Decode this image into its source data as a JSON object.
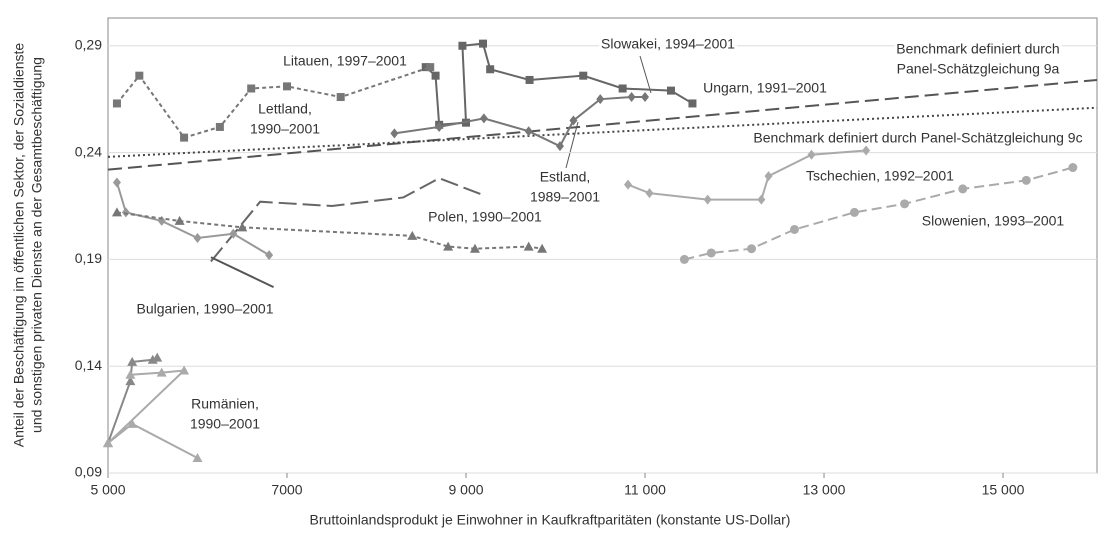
{
  "chart_data": {
    "type": "line",
    "xlabel": "Bruttoinlandsprodukt je Einwohner in Kaufkraftparitäten (konstante US-Dollar)",
    "ylabel": [
      "Anteil der Beschäftigung im öffentlichen Sektor, der Sozialdienste",
      "und sonstigen privaten Dienste an der Gesamtbeschäftigung"
    ],
    "xlim": [
      5000,
      16050
    ],
    "ylim": [
      0.09,
      0.303
    ],
    "xticks": [
      {
        "value": 5000,
        "label": "5 000"
      },
      7000,
      {
        "value": 9000,
        "label": "9 000"
      },
      {
        "value": 11000,
        "label": "11 000"
      },
      {
        "value": 13000,
        "label": "13 000"
      },
      {
        "value": 15000,
        "label": "15 000"
      }
    ],
    "yticks": [
      {
        "value": 0.09,
        "label": "0,09"
      },
      {
        "value": 0.14,
        "label": "0,14"
      },
      {
        "value": 0.19,
        "label": "0,19"
      },
      {
        "value": 0.24,
        "label": "0,24"
      },
      {
        "value": 0.29,
        "label": "0,29"
      }
    ],
    "grid": true,
    "series": [
      {
        "x": [
          5000,
          16050
        ],
        "values": [
          0.232,
          0.274
        ],
        "color": "#555555",
        "dash": "14 6",
        "marker": "none"
      },
      {
        "x": [
          5000,
          16050
        ],
        "values": [
          0.238,
          0.261
        ],
        "color": "#444444",
        "dash": "2 3",
        "marker": "none"
      },
      {
        "x": [
          8550,
          8660,
          8700,
          9000,
          8960,
          9190,
          9270,
          9710,
          10310,
          10750,
          11290,
          11530
        ],
        "values": [
          0.28,
          0.276,
          0.253,
          0.254,
          0.29,
          0.291,
          0.279,
          0.274,
          0.276,
          0.27,
          0.269,
          0.263
        ],
        "color": "#666666",
        "dash": "none",
        "marker": "square"
      },
      {
        "x": [
          8200,
          8700,
          9200,
          9700,
          10050,
          10200,
          10500,
          10850,
          11000
        ],
        "values": [
          0.249,
          0.252,
          0.256,
          0.25,
          0.243,
          0.255,
          0.265,
          0.266,
          0.266
        ],
        "color": "#777777",
        "dash": "none",
        "marker": "diamond"
      },
      {
        "x": [
          5100,
          5350,
          5850,
          6250,
          6600,
          7000,
          7600,
          8600
        ],
        "values": [
          0.263,
          0.276,
          0.247,
          0.252,
          0.27,
          0.271,
          0.266,
          0.28
        ],
        "color": "#777777",
        "dash": "4 3",
        "marker": "square"
      },
      {
        "x": [
          6150,
          6700,
          7500,
          8300,
          8700,
          9200
        ],
        "values": [
          0.189,
          0.217,
          0.215,
          0.219,
          0.228,
          0.22
        ],
        "color": "#666666",
        "dash": "18 6",
        "marker": "none"
      },
      {
        "x": [
          5100,
          5200,
          5600,
          6000,
          6400,
          6800
        ],
        "values": [
          0.226,
          0.212,
          0.208,
          0.2,
          0.202,
          0.192
        ],
        "color": "#999999",
        "dash": "none",
        "marker": "diamond"
      },
      {
        "x": [
          6150,
          6850
        ],
        "values": [
          0.191,
          0.177
        ],
        "color": "#555555",
        "dash": "none",
        "marker": "none"
      },
      {
        "x": [
          5100,
          5800,
          6500,
          8400,
          8800,
          9100,
          9700,
          9850
        ],
        "values": [
          0.212,
          0.208,
          0.205,
          0.201,
          0.196,
          0.195,
          0.196,
          0.195
        ],
        "color": "#777777",
        "dash": "4 3",
        "marker": "triangle"
      },
      {
        "x": [
          10810,
          11050,
          11700,
          12300,
          12380,
          12860,
          13470
        ],
        "values": [
          0.225,
          0.221,
          0.218,
          0.218,
          0.229,
          0.239,
          0.241
        ],
        "color": "#aaaaaa",
        "dash": "none",
        "marker": "diamond"
      },
      {
        "x": [
          11440,
          11740,
          12190,
          12670,
          13340,
          13900,
          14550,
          15260,
          15780
        ],
        "values": [
          0.19,
          0.193,
          0.195,
          0.204,
          0.212,
          0.216,
          0.223,
          0.227,
          0.233
        ],
        "color": "#aaaaaa",
        "dash": "10 5",
        "marker": "circle"
      },
      {
        "x": [
          5000,
          5250,
          5270,
          5500,
          5550
        ],
        "values": [
          0.104,
          0.133,
          0.142,
          0.143,
          0.144
        ],
        "color": "#888888",
        "dash": "none",
        "marker": "triangle"
      },
      {
        "x": [
          5250,
          5600,
          5850,
          5000,
          5270,
          6000
        ],
        "values": [
          0.136,
          0.137,
          0.138,
          0.104,
          0.113,
          0.097
        ],
        "color": "#aaaaaa",
        "dash": "none",
        "marker": "triangle"
      }
    ],
    "annotations": [
      [
        "Litauen, 1997–2001"
      ],
      [
        "Lettland,",
        "1990–2001"
      ],
      [
        "Slowakei, 1994–2001"
      ],
      [
        "Ungarn, 1991–2001"
      ],
      [
        "Benchmark definiert durch",
        "Panel-Schätzgleichung 9a"
      ],
      [
        "Benchmark definiert durch Panel-Schätzgleichung 9c"
      ],
      [
        "Estland,",
        "1989–2001"
      ],
      [
        "Tschechien, 1992–2001"
      ],
      [
        "Polen, 1990–2001"
      ],
      [
        "Slowenien, 1993–2001"
      ],
      [
        "Bulgarien, 1990–2001"
      ],
      [
        "Rumänien,",
        "1990–2001"
      ]
    ]
  }
}
